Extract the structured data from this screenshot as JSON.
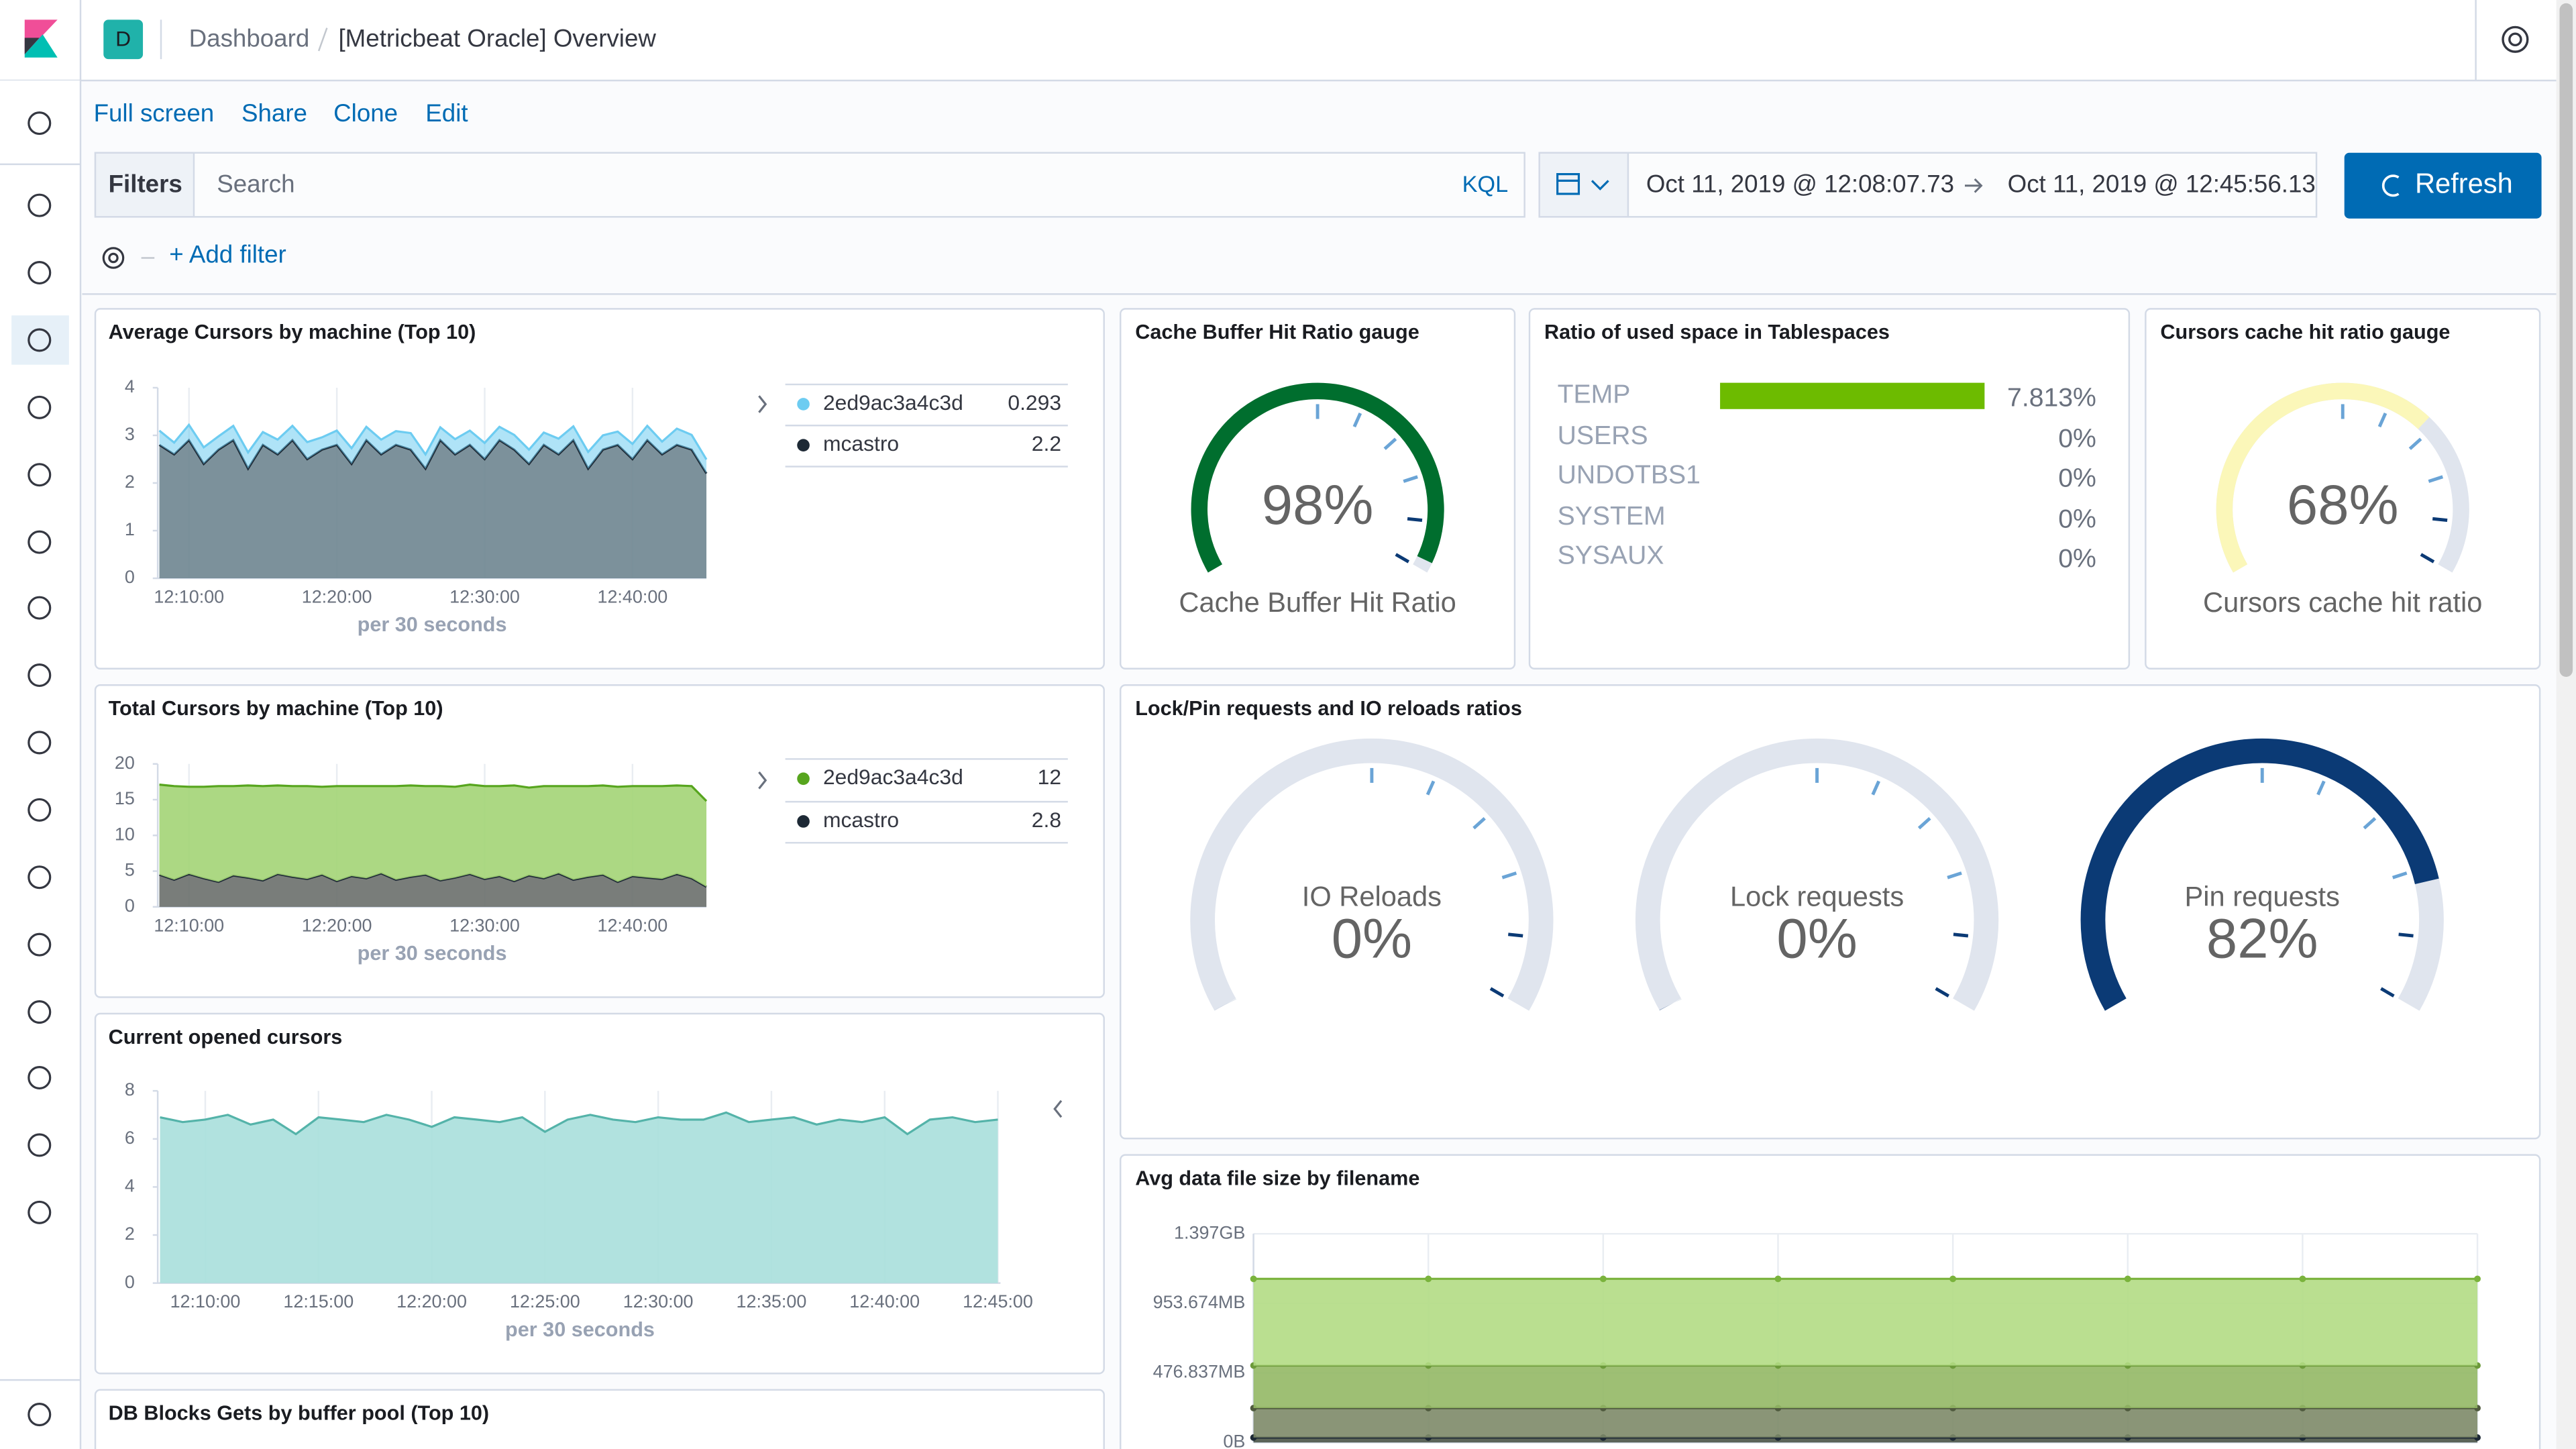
{
  "header": {
    "space_initial": "D",
    "breadcrumb": [
      "Dashboard",
      "[Metricbeat Oracle] Overview"
    ]
  },
  "menu": [
    "Full screen",
    "Share",
    "Clone",
    "Edit"
  ],
  "query_bar": {
    "filters_label": "Filters",
    "placeholder": "Search",
    "language": "KQL",
    "start": "Oct 11, 2019 @ 12:08:07.73",
    "end": "Oct 11, 2019 @ 12:45:56.13",
    "refresh": "Refresh",
    "add_filter": "+ Add filter"
  },
  "chart_data": [
    {
      "type": "area",
      "title": "Average Cursors by machine (Top 10)",
      "x_label": "per 30 seconds",
      "stacked": true,
      "x": [
        "12:08:00",
        "12:09:00",
        "12:10:00",
        "12:11:00",
        "12:12:00",
        "12:13:00",
        "12:14:00",
        "12:15:00",
        "12:16:00",
        "12:17:00",
        "12:18:00",
        "12:19:00",
        "12:20:00",
        "12:21:00",
        "12:22:00",
        "12:23:00",
        "12:24:00",
        "12:25:00",
        "12:26:00",
        "12:27:00",
        "12:28:00",
        "12:29:00",
        "12:30:00",
        "12:31:00",
        "12:32:00",
        "12:33:00",
        "12:34:00",
        "12:35:00",
        "12:36:00",
        "12:37:00",
        "12:38:00",
        "12:39:00",
        "12:40:00",
        "12:41:00",
        "12:42:00",
        "12:43:00",
        "12:44:00",
        "12:45:00"
      ],
      "xlim": [
        "12:07:53",
        "12:45:00"
      ],
      "xticks": [
        "12:10:00",
        "12:20:00",
        "12:30:00",
        "12:40:00"
      ],
      "ylim": [
        0,
        4
      ],
      "yticks": [
        0,
        1,
        2,
        3,
        4
      ],
      "series": [
        {
          "name": "2ed9ac3a4c3d",
          "color": "#6dccf1",
          "legend_value": 0.293,
          "values": [
            0.3,
            0.25,
            0.32,
            0.35,
            0.28,
            0.3,
            0.34,
            0.27,
            0.31,
            0.3,
            0.36,
            0.26,
            0.3,
            0.33,
            0.28,
            0.31,
            0.29,
            0.35,
            0.3,
            0.27,
            0.32,
            0.3,
            0.34,
            0.28,
            0.31,
            0.3,
            0.26,
            0.33,
            0.29,
            0.35,
            0.3,
            0.28,
            0.32,
            0.3,
            0.27,
            0.34,
            0.31,
            0.293
          ]
        },
        {
          "name": "mcastro",
          "color": "#1d2935",
          "fill": "#6e8590",
          "legend_value": 2.2,
          "values": [
            2.8,
            2.6,
            2.9,
            2.4,
            2.7,
            2.9,
            2.3,
            2.8,
            2.6,
            2.9,
            2.5,
            2.7,
            2.8,
            2.4,
            2.9,
            2.6,
            2.8,
            2.7,
            2.3,
            2.9,
            2.6,
            2.8,
            2.5,
            2.9,
            2.7,
            2.4,
            2.8,
            2.6,
            2.9,
            2.3,
            2.7,
            2.8,
            2.5,
            2.9,
            2.6,
            2.8,
            2.7,
            2.2
          ]
        }
      ]
    },
    {
      "type": "gauge",
      "title": "Cache Buffer Hit Ratio gauge",
      "categories": [
        "Cache Buffer Hit Ratio"
      ],
      "values": [
        98
      ],
      "value_labels": [
        "98%"
      ],
      "ylim": [
        0,
        100
      ],
      "color": "#006e2e"
    },
    {
      "type": "hbar",
      "title": "Ratio of used space in Tablespaces",
      "categories": [
        "TEMP",
        "USERS",
        "UNDOTBS1",
        "SYSTEM",
        "SYSAUX"
      ],
      "values": [
        7.813,
        0,
        0,
        0,
        0
      ],
      "value_labels": [
        "7.813%",
        "0%",
        "0%",
        "0%",
        "0%"
      ],
      "xlim": [
        0,
        7.813
      ],
      "color": "#6dbb00"
    },
    {
      "type": "gauge",
      "title": "Cursors cache hit ratio gauge",
      "categories": [
        "Cursors cache hit ratio"
      ],
      "values": [
        68
      ],
      "value_labels": [
        "68%"
      ],
      "ylim": [
        0,
        100
      ],
      "color": "#fbf7b9"
    },
    {
      "type": "area",
      "title": "Total Cursors by machine (Top 10)",
      "x_label": "per 30 seconds",
      "stacked": true,
      "x": [
        "12:08:00",
        "12:09:00",
        "12:10:00",
        "12:11:00",
        "12:12:00",
        "12:13:00",
        "12:14:00",
        "12:15:00",
        "12:16:00",
        "12:17:00",
        "12:18:00",
        "12:19:00",
        "12:20:00",
        "12:21:00",
        "12:22:00",
        "12:23:00",
        "12:24:00",
        "12:25:00",
        "12:26:00",
        "12:27:00",
        "12:28:00",
        "12:29:00",
        "12:30:00",
        "12:31:00",
        "12:32:00",
        "12:33:00",
        "12:34:00",
        "12:35:00",
        "12:36:00",
        "12:37:00",
        "12:38:00",
        "12:39:00",
        "12:40:00",
        "12:41:00",
        "12:42:00",
        "12:43:00",
        "12:44:00",
        "12:45:00"
      ],
      "xlim": [
        "12:07:53",
        "12:45:00"
      ],
      "xticks": [
        "12:10:00",
        "12:20:00",
        "12:30:00",
        "12:40:00"
      ],
      "ylim": [
        0,
        20
      ],
      "yticks": [
        0,
        5,
        10,
        15,
        20
      ],
      "series": [
        {
          "name": "2ed9ac3a4c3d",
          "color": "#57a51e",
          "fill": "#a3d476",
          "legend_value": 12,
          "values": [
            12.6,
            13.1,
            12.2,
            12.8,
            13.4,
            12.5,
            12.9,
            13.2,
            12.4,
            12.7,
            13.0,
            12.3,
            13.3,
            12.6,
            12.9,
            12.2,
            13.1,
            12.8,
            12.4,
            13.2,
            12.7,
            12.5,
            13.0,
            12.6,
            13.4,
            12.3,
            12.9,
            12.2,
            13.1,
            12.7,
            12.5,
            13.3,
            12.6,
            12.8,
            13.0,
            12.4,
            12.9,
            12.0
          ]
        },
        {
          "name": "mcastro",
          "color": "#1d2935",
          "fill": "#6a6f6c",
          "legend_value": 2.8,
          "values": [
            4.5,
            3.8,
            4.6,
            4.0,
            3.5,
            4.4,
            4.1,
            3.7,
            4.6,
            4.2,
            3.9,
            4.5,
            3.6,
            4.3,
            4.0,
            4.7,
            3.8,
            4.2,
            4.5,
            3.7,
            4.1,
            4.6,
            3.9,
            4.3,
            3.6,
            4.4,
            4.0,
            4.7,
            3.8,
            4.2,
            4.5,
            3.5,
            4.3,
            4.1,
            3.9,
            4.6,
            4.0,
            2.8
          ]
        }
      ]
    },
    {
      "type": "gauge",
      "title": "Lock/Pin requests and IO reloads ratios",
      "categories": [
        "IO Reloads",
        "Lock requests",
        "Pin requests"
      ],
      "values": [
        0,
        0,
        82
      ],
      "value_labels": [
        "0%",
        "0%",
        "82%"
      ],
      "ylim": [
        0,
        100
      ],
      "color": "#0b3a75"
    },
    {
      "type": "area",
      "title": "Current opened cursors",
      "x_label": "per 30 seconds",
      "stacked": false,
      "x": [
        "12:08:00",
        "12:09:00",
        "12:10:00",
        "12:11:00",
        "12:12:00",
        "12:13:00",
        "12:14:00",
        "12:15:00",
        "12:16:00",
        "12:17:00",
        "12:18:00",
        "12:19:00",
        "12:20:00",
        "12:21:00",
        "12:22:00",
        "12:23:00",
        "12:24:00",
        "12:25:00",
        "12:26:00",
        "12:27:00",
        "12:28:00",
        "12:29:00",
        "12:30:00",
        "12:31:00",
        "12:32:00",
        "12:33:00",
        "12:34:00",
        "12:35:00",
        "12:36:00",
        "12:37:00",
        "12:38:00",
        "12:39:00",
        "12:40:00",
        "12:41:00",
        "12:42:00",
        "12:43:00",
        "12:44:00",
        "12:45:00"
      ],
      "xlim": [
        "12:07:54",
        "12:45:07"
      ],
      "xticks": [
        "12:10:00",
        "12:15:00",
        "12:20:00",
        "12:25:00",
        "12:30:00",
        "12:35:00",
        "12:40:00",
        "12:45:00"
      ],
      "ylim": [
        0,
        8
      ],
      "yticks": [
        0,
        2,
        4,
        6,
        8
      ],
      "series": [
        {
          "color": "#54b3a9",
          "fill": "#a8dfdc",
          "values": [
            6.9,
            6.7,
            6.8,
            7.0,
            6.6,
            6.8,
            6.2,
            6.9,
            6.8,
            6.7,
            7.0,
            6.8,
            6.5,
            6.9,
            6.8,
            6.7,
            6.9,
            6.3,
            6.8,
            7.0,
            6.8,
            6.7,
            6.9,
            6.8,
            6.8,
            7.1,
            6.7,
            6.8,
            6.9,
            6.6,
            6.8,
            6.7,
            6.9,
            6.2,
            6.8,
            6.9,
            6.7,
            6.8
          ]
        }
      ]
    },
    {
      "type": "area",
      "title": "Avg data file size by filename",
      "stacked": true,
      "categories": [
        null,
        null,
        null,
        null,
        null,
        null,
        null,
        null
      ],
      "ylim": [
        0,
        1500000000
      ],
      "yticks": [
        {
          "value": 0,
          "label": "0B"
        },
        {
          "value": 500000000,
          "label": "476.837MB"
        },
        {
          "value": 1000000000,
          "label": "953.674MB"
        },
        {
          "value": 1500000000,
          "label": "1.397GB"
        }
      ],
      "series": [
        {
          "color": "#7ab33c",
          "fill": "#b2dc84",
          "values": [
            623000000,
            623000000,
            623000000,
            623000000,
            623000000,
            623000000,
            623000000,
            623000000
          ]
        },
        {
          "color": "#6c9a3a",
          "fill": "#93b865",
          "values": [
            306000000,
            306000000,
            306000000,
            306000000,
            306000000,
            306000000,
            306000000,
            306000000
          ]
        },
        {
          "color": "#4f5a3e",
          "fill": "#7d8a68",
          "values": [
            212000000,
            212000000,
            212000000,
            212000000,
            212000000,
            212000000,
            212000000,
            212000000
          ]
        },
        {
          "color": "#1d2935",
          "fill": "#4a5447",
          "values": [
            35000000,
            35000000,
            35000000,
            35000000,
            35000000,
            35000000,
            35000000,
            35000000
          ]
        }
      ]
    },
    {
      "type": "area",
      "title": "DB Blocks Gets by buffer pool (Top 10)"
    }
  ]
}
